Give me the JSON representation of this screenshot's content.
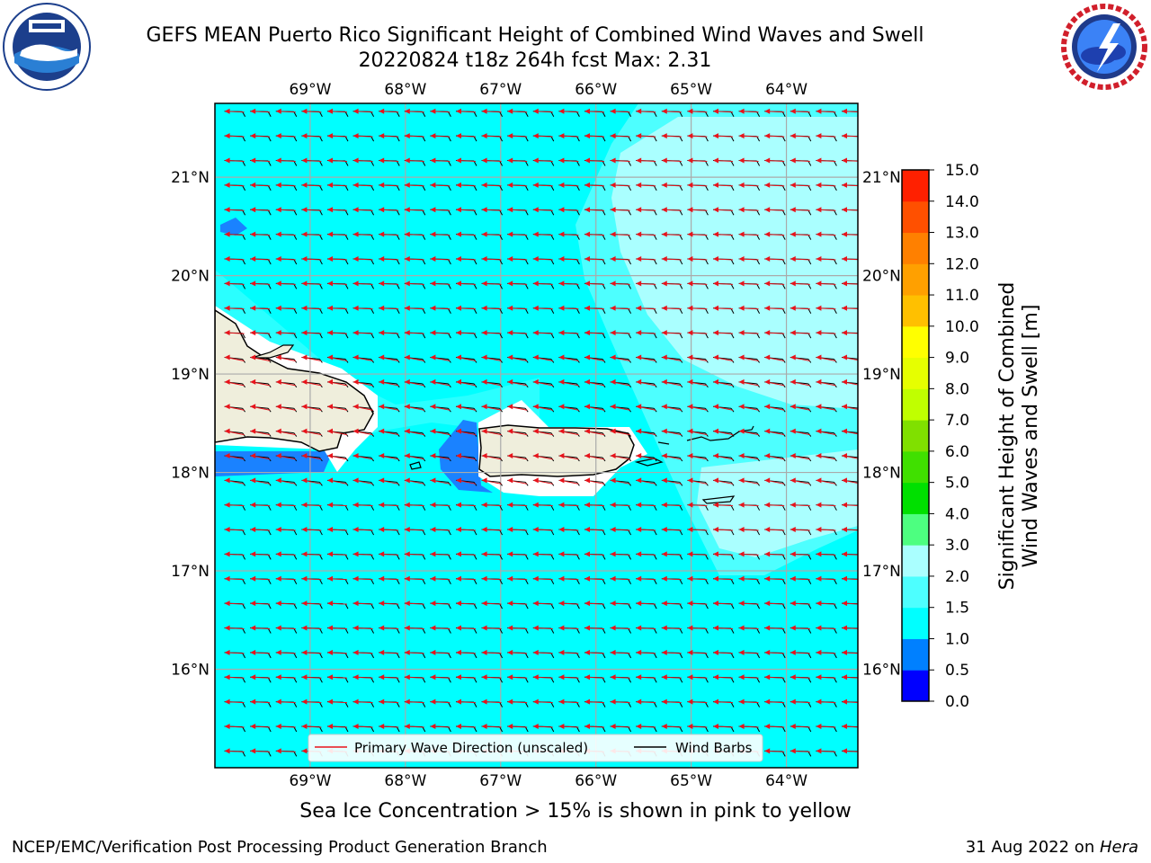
{
  "title": {
    "line1": "GEFS MEAN Puerto Rico Significant Height of Combined Wind Waves and Swell",
    "line2": "20220824 t18z 264h fcst   Max: 2.31"
  },
  "map": {
    "lon_ticks": [
      "69°W",
      "68°W",
      "67°W",
      "66°W",
      "65°W",
      "64°W"
    ],
    "lat_ticks": [
      "21°N",
      "20°N",
      "19°N",
      "18°N",
      "17°N",
      "16°N"
    ],
    "extent": {
      "lon_min": -70.0,
      "lon_max": -63.25,
      "lat_min": 15.0,
      "lat_max": 21.75
    },
    "legend": {
      "primary_wave_label": "Primary Wave Direction (unscaled)",
      "wind_barbs_label": "Wind Barbs",
      "primary_wave_color": "#e8131b",
      "wind_barbs_color": "#000000"
    },
    "colors": {
      "sea_dominant": "#00ffff",
      "sea_light": "#4dffff",
      "sea_pale": "#aaffff",
      "shallow": "#1a82ff",
      "land": "#efeedc"
    }
  },
  "colorbar": {
    "label_line1": "Significant Height of Combined",
    "label_line2": "Wind Waves and Swell [m]",
    "levels": [
      "0.0",
      "0.5",
      "1.0",
      "1.5",
      "2.0",
      "3.0",
      "4.0",
      "5.0",
      "6.0",
      "7.0",
      "8.0",
      "9.0",
      "10.0",
      "11.0",
      "12.0",
      "13.0",
      "14.0",
      "15.0"
    ],
    "colors": [
      "#0000ff",
      "#0080ff",
      "#00ffff",
      "#4dffff",
      "#aaffff",
      "#4dff80",
      "#00e000",
      "#40e000",
      "#80e000",
      "#c0ff00",
      "#e6ff00",
      "#ffff00",
      "#ffc000",
      "#ffa000",
      "#ff8000",
      "#ff5000",
      "#ff2000"
    ]
  },
  "subnote": "Sea Ice Concentration > 15% is shown in pink to yellow",
  "footer": {
    "left": "NCEP/EMC/Verification Post Processing Product Generation Branch",
    "right_prefix": "31 Aug 2022 on ",
    "right_italic": "Hera"
  }
}
